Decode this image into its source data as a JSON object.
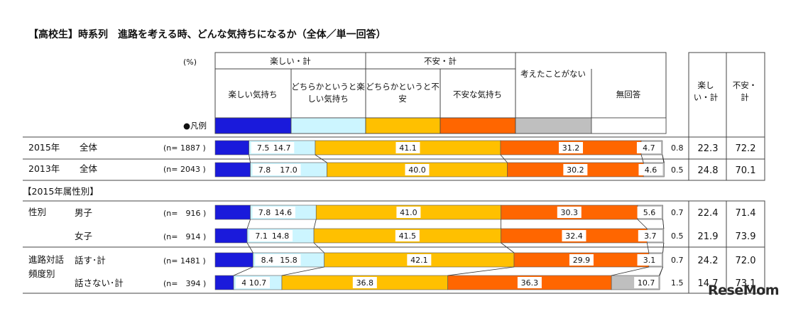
{
  "title": "【高校生】時系列　進路を考える時、どんな気持ちになるか（全体／単一回答）",
  "unit": "(%)",
  "group_headers": {
    "fun_total": "楽しい・計",
    "anxiety_total": "不安・計"
  },
  "column_headers": [
    "楽しい気持ち",
    "どちらかというと楽しい気持ち",
    "どちらかというと不安",
    "不安な気持ち",
    "考えたことがない",
    "無回答"
  ],
  "right_headers": {
    "fun_total": "楽しい・計",
    "anxiety_total": "不安・計"
  },
  "legend_label": "●凡例",
  "section_label": "【2015年属性別】",
  "group_labels": {
    "gender": "性別",
    "talk": "進路対話頻度別"
  },
  "colors": [
    "#1a1adb",
    "#ccf5ff",
    "#ffc000",
    "#ff6600",
    "#bfbfbf",
    "#ffffff"
  ],
  "logo": "ReseMom",
  "chart_data": {
    "type": "bar",
    "orientation": "horizontal-stacked-100",
    "series_names": [
      "楽しい気持ち",
      "どちらかというと楽しい気持ち",
      "どちらかというと不安",
      "不安な気持ち",
      "考えたことがない",
      "無回答"
    ],
    "rows": [
      {
        "year": "2015年",
        "label": "全体",
        "n": "(n= 1887 )",
        "values": [
          7.5,
          14.7,
          41.1,
          31.2,
          4.7,
          0.8
        ],
        "fun_total": 22.3,
        "anxiety_total": 72.2
      },
      {
        "year": "2013年",
        "label": "全体",
        "n": "(n= 2043 )",
        "values": [
          7.8,
          17.0,
          40.0,
          30.2,
          4.6,
          0.5
        ],
        "fun_total": 24.8,
        "anxiety_total": 70.1
      },
      {
        "label": "男子",
        "n": "(n=　916 )",
        "values": [
          7.8,
          14.6,
          41.0,
          30.3,
          5.6,
          0.7
        ],
        "fun_total": 22.4,
        "anxiety_total": 71.4
      },
      {
        "label": "女子",
        "n": "(n=　914 )",
        "values": [
          7.1,
          14.8,
          41.5,
          32.4,
          3.7,
          0.5
        ],
        "fun_total": 21.9,
        "anxiety_total": 73.9
      },
      {
        "label": "話す･計",
        "n": "(n= 1481 )",
        "values": [
          8.4,
          15.8,
          42.1,
          29.9,
          3.1,
          0.7
        ],
        "fun_total": 24.2,
        "anxiety_total": 72.0
      },
      {
        "label": "話さない･計",
        "n": "(n=　394 )",
        "values": [
          4.1,
          10.7,
          36.8,
          36.3,
          10.7,
          1.5
        ],
        "fun_total": 14.7,
        "anxiety_total": 73.1
      }
    ]
  }
}
